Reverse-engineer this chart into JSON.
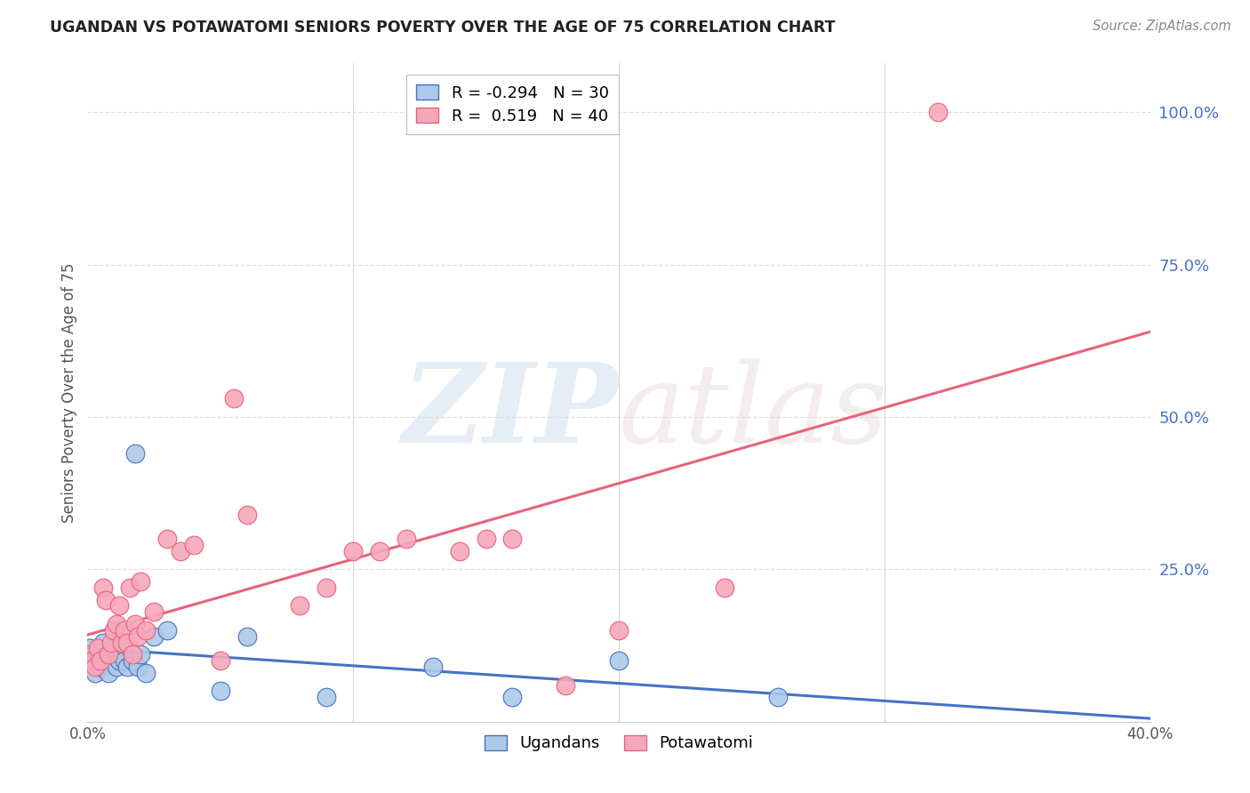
{
  "title": "UGANDAN VS POTAWATOMI SENIORS POVERTY OVER THE AGE OF 75 CORRELATION CHART",
  "source": "Source: ZipAtlas.com",
  "ylabel": "Seniors Poverty Over the Age of 75",
  "ugandan_R": -0.294,
  "ugandan_N": 30,
  "potawatomi_R": 0.519,
  "potawatomi_N": 40,
  "ugandan_color": "#adc9e8",
  "potawatomi_color": "#f5a8bc",
  "ugandan_line_color": "#4472c4",
  "potawatomi_line_color": "#e8637a",
  "ugandan_x": [
    0.001,
    0.002,
    0.003,
    0.004,
    0.005,
    0.006,
    0.007,
    0.008,
    0.009,
    0.01,
    0.011,
    0.012,
    0.013,
    0.014,
    0.015,
    0.016,
    0.017,
    0.018,
    0.019,
    0.02,
    0.022,
    0.025,
    0.03,
    0.05,
    0.06,
    0.09,
    0.13,
    0.16,
    0.2,
    0.26
  ],
  "ugandan_y": [
    0.12,
    0.1,
    0.08,
    0.11,
    0.09,
    0.13,
    0.1,
    0.08,
    0.11,
    0.12,
    0.09,
    0.1,
    0.11,
    0.1,
    0.09,
    0.12,
    0.1,
    0.44,
    0.09,
    0.11,
    0.08,
    0.14,
    0.15,
    0.05,
    0.14,
    0.04,
    0.09,
    0.04,
    0.1,
    0.04
  ],
  "potawatomi_x": [
    0.001,
    0.002,
    0.003,
    0.004,
    0.005,
    0.006,
    0.007,
    0.008,
    0.009,
    0.01,
    0.011,
    0.012,
    0.013,
    0.014,
    0.015,
    0.016,
    0.017,
    0.018,
    0.019,
    0.02,
    0.022,
    0.025,
    0.03,
    0.035,
    0.04,
    0.05,
    0.055,
    0.06,
    0.08,
    0.09,
    0.1,
    0.11,
    0.12,
    0.14,
    0.15,
    0.16,
    0.18,
    0.2,
    0.24,
    0.32
  ],
  "potawatomi_y": [
    0.11,
    0.1,
    0.09,
    0.12,
    0.1,
    0.22,
    0.2,
    0.11,
    0.13,
    0.15,
    0.16,
    0.19,
    0.13,
    0.15,
    0.13,
    0.22,
    0.11,
    0.16,
    0.14,
    0.23,
    0.15,
    0.18,
    0.3,
    0.28,
    0.29,
    0.1,
    0.53,
    0.34,
    0.19,
    0.22,
    0.28,
    0.28,
    0.3,
    0.28,
    0.3,
    0.3,
    0.06,
    0.15,
    0.22,
    1.0
  ],
  "watermark_zip": "ZIP",
  "watermark_atlas": "atlas",
  "background_color": "#ffffff",
  "grid_color": "#e0e0e0",
  "xlim": [
    0.0,
    0.4
  ],
  "ylim": [
    0.0,
    1.08
  ],
  "yticks": [
    0.25,
    0.5,
    0.75,
    1.0
  ],
  "ytick_labels": [
    "25.0%",
    "50.0%",
    "75.0%",
    "100.0%"
  ],
  "xticks": [
    0.0,
    0.4
  ],
  "xtick_labels": [
    "0.0%",
    "40.0%"
  ]
}
